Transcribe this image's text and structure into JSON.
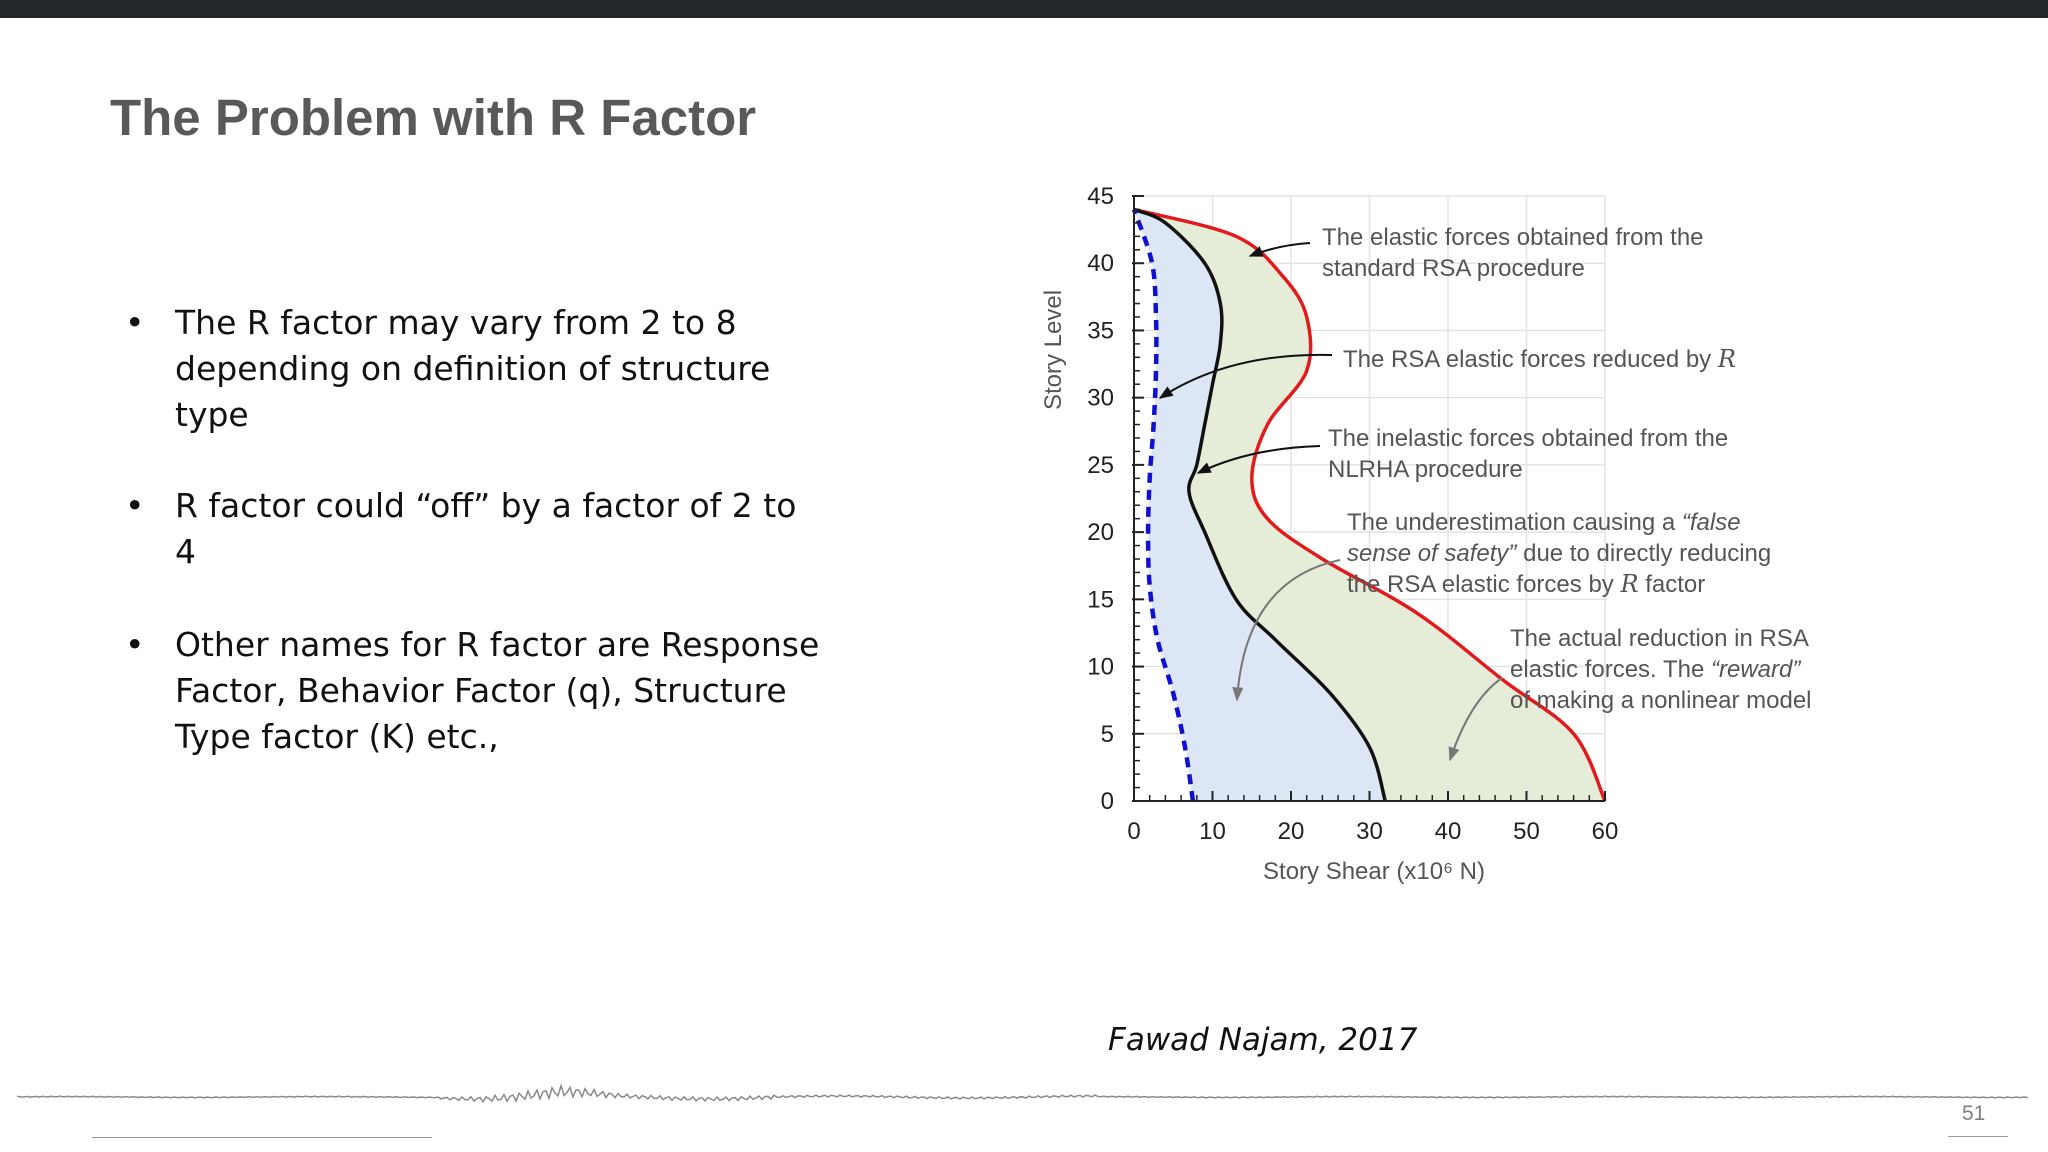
{
  "slide": {
    "title": "The Problem with R Factor",
    "bullets": [
      "The R factor may vary from 2 to 8 depending on definition of structure type",
      "R factor could “off” by a factor of 2 to 4",
      "Other names for R factor are Response Factor, Behavior Factor (q), Structure Type factor (K) etc.,"
    ],
    "citation": "Fawad Najam, 2017",
    "page_number": "51"
  },
  "chart_data": {
    "type": "line",
    "xlabel": "Story Shear (x10⁶ N)",
    "ylabel": "Story Level",
    "xlim": [
      0,
      60
    ],
    "ylim": [
      0,
      45
    ],
    "x_ticks": [
      "0",
      "10",
      "20",
      "30",
      "40",
      "50",
      "60"
    ],
    "y_ticks": [
      "0",
      "5",
      "10",
      "15",
      "20",
      "25",
      "30",
      "35",
      "40",
      "45"
    ],
    "grid": true,
    "series": [
      {
        "color": "#e31a1c",
        "style": "solid",
        "points": [
          [
            60,
            0
          ],
          [
            56,
            5
          ],
          [
            47,
            9
          ],
          [
            36,
            14
          ],
          [
            24,
            18
          ],
          [
            17,
            21
          ],
          [
            15,
            24
          ],
          [
            17,
            28
          ],
          [
            22,
            32
          ],
          [
            22,
            36
          ],
          [
            19,
            39
          ],
          [
            13,
            42
          ],
          [
            0,
            44
          ]
        ]
      },
      {
        "color": "#111111",
        "style": "solid",
        "points": [
          [
            32,
            0
          ],
          [
            30,
            4
          ],
          [
            25,
            8
          ],
          [
            18,
            12
          ],
          [
            13,
            15
          ],
          [
            9,
            20
          ],
          [
            7,
            23
          ],
          [
            8,
            25
          ],
          [
            9,
            28
          ],
          [
            10,
            31
          ],
          [
            11,
            34
          ],
          [
            11,
            37
          ],
          [
            9,
            40
          ],
          [
            4,
            43
          ],
          [
            0,
            44
          ]
        ]
      },
      {
        "color": "#1010d0",
        "style": "dashed",
        "points": [
          [
            7.5,
            0
          ],
          [
            6.5,
            4
          ],
          [
            5,
            8
          ],
          [
            3,
            12
          ],
          [
            2,
            16
          ],
          [
            1.8,
            20
          ],
          [
            2,
            24
          ],
          [
            2.5,
            28
          ],
          [
            2.8,
            32
          ],
          [
            2.8,
            36
          ],
          [
            2.3,
            40
          ],
          [
            0,
            44
          ]
        ]
      }
    ],
    "annotations": [
      {
        "lines": [
          [
            "The elastic forces obtained from the"
          ],
          [
            "standard RSA procedure"
          ]
        ]
      },
      {
        "lines": [
          [
            "The RSA elastic forces reduced by ",
            {
              "text": "R",
              "italic": true
            }
          ]
        ]
      },
      {
        "lines": [
          [
            "The inelastic forces obtained from the"
          ],
          [
            "NLRHA procedure"
          ]
        ]
      },
      {
        "lines": [
          [
            "The underestimation causing a ",
            {
              "text": "“false",
              "italic": true
            }
          ],
          [
            {
              "text": "sense of safety”",
              "italic": true
            },
            " due to directly reducing"
          ],
          [
            "the RSA elastic forces by ",
            {
              "text": "R",
              "italic": true
            },
            " factor"
          ]
        ]
      },
      {
        "lines": [
          [
            "The actual reduction in RSA"
          ],
          [
            "elastic forces. The ",
            {
              "text": "“reward”",
              "italic": true
            }
          ],
          [
            "of making a nonlinear model"
          ]
        ]
      }
    ]
  }
}
